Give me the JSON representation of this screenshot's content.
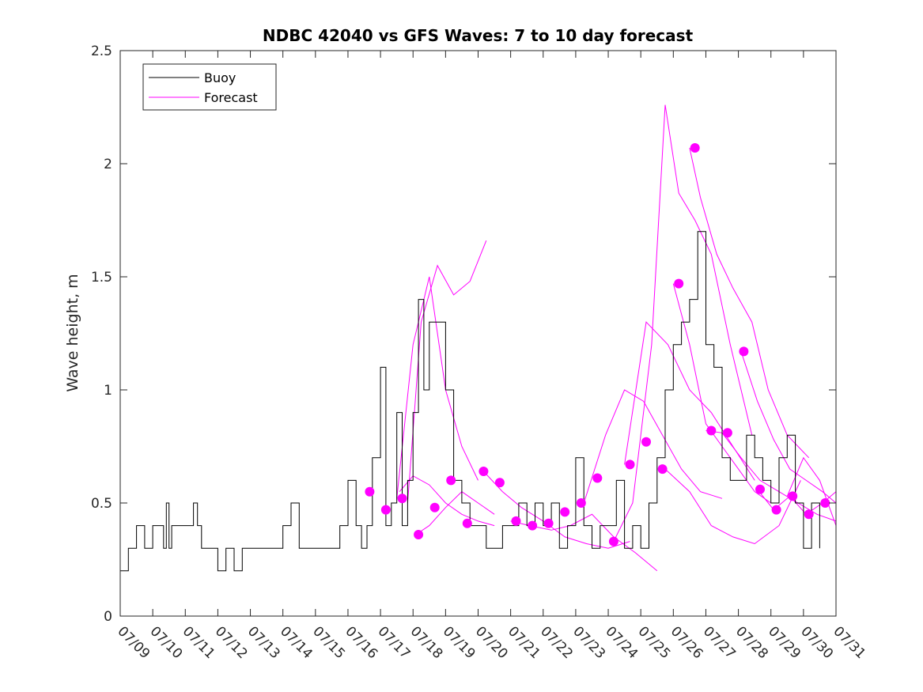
{
  "chart_data": {
    "type": "line",
    "title": "NDBC 42040 vs GFS Waves: 7 to 10 day forecast",
    "xlabel": "",
    "ylabel": "Wave height, m",
    "xlim": [
      "07/09",
      "07/31"
    ],
    "ylim": [
      0,
      2.5
    ],
    "x_tick_labels": [
      "07/09",
      "07/10",
      "07/11",
      "07/12",
      "07/13",
      "07/14",
      "07/15",
      "07/16",
      "07/17",
      "07/18",
      "07/19",
      "07/20",
      "07/21",
      "07/22",
      "07/23",
      "07/24",
      "07/25",
      "07/26",
      "07/27",
      "07/28",
      "07/29",
      "07/30",
      "07/31"
    ],
    "y_ticks": [
      0,
      0.5,
      1,
      1.5,
      2,
      2.5
    ],
    "y_tick_labels": [
      "0",
      "0.5",
      "1",
      "1.5",
      "2",
      "2.5"
    ],
    "grid": false,
    "legend": {
      "position": "top-left",
      "entries": [
        "Buoy",
        "Forecast"
      ]
    },
    "colors": {
      "buoy": "#000000",
      "forecast": "#ff00ff"
    },
    "buoy": {
      "name": "Buoy",
      "x": [
        "07/09 00:00",
        "07/09 06:00",
        "07/09 12:00",
        "07/09 18:00",
        "07/10 00:00",
        "07/10 06:00",
        "07/10 08:00",
        "07/10 10:00",
        "07/10 12:00",
        "07/10 14:00",
        "07/10 16:00",
        "07/10 18:00",
        "07/11 00:00",
        "07/11 06:00",
        "07/11 09:00",
        "07/11 12:00",
        "07/11 18:00",
        "07/12 00:00",
        "07/12 06:00",
        "07/12 12:00",
        "07/12 18:00",
        "07/13 00:00",
        "07/13 06:00",
        "07/13 12:00",
        "07/13 18:00",
        "07/14 00:00",
        "07/14 06:00",
        "07/14 12:00",
        "07/14 18:00",
        "07/15 00:00",
        "07/15 06:00",
        "07/15 12:00",
        "07/15 18:00",
        "07/16 00:00",
        "07/16 06:00",
        "07/16 10:00",
        "07/16 14:00",
        "07/16 18:00",
        "07/17 00:00",
        "07/17 04:00",
        "07/17 08:00",
        "07/17 12:00",
        "07/17 16:00",
        "07/17 20:00",
        "07/18 00:00",
        "07/18 04:00",
        "07/18 08:00",
        "07/18 12:00",
        "07/18 18:00",
        "07/19 00:00",
        "07/19 06:00",
        "07/19 12:00",
        "07/19 18:00",
        "07/20 00:00",
        "07/20 06:00",
        "07/20 12:00",
        "07/20 18:00",
        "07/21 00:00",
        "07/21 06:00",
        "07/21 12:00",
        "07/21 18:00",
        "07/22 00:00",
        "07/22 06:00",
        "07/22 12:00",
        "07/22 18:00",
        "07/23 00:00",
        "07/23 06:00",
        "07/23 12:00",
        "07/23 18:00",
        "07/24 00:00",
        "07/24 06:00",
        "07/24 12:00",
        "07/24 18:00",
        "07/25 00:00",
        "07/25 06:00",
        "07/25 12:00",
        "07/25 18:00",
        "07/26 00:00",
        "07/26 06:00",
        "07/26 12:00",
        "07/26 18:00",
        "07/27 00:00",
        "07/27 06:00",
        "07/27 12:00",
        "07/27 18:00",
        "07/28 00:00",
        "07/28 06:00",
        "07/28 12:00",
        "07/28 18:00",
        "07/29 00:00",
        "07/29 06:00",
        "07/29 12:00",
        "07/29 18:00",
        "07/30 00:00",
        "07/30 06:00",
        "07/30 12:00"
      ],
      "y": [
        0.2,
        0.3,
        0.4,
        0.3,
        0.4,
        0.4,
        0.3,
        0.5,
        0.3,
        0.4,
        0.4,
        0.4,
        0.4,
        0.5,
        0.4,
        0.3,
        0.3,
        0.2,
        0.3,
        0.2,
        0.3,
        0.3,
        0.3,
        0.3,
        0.3,
        0.4,
        0.5,
        0.3,
        0.3,
        0.3,
        0.3,
        0.3,
        0.4,
        0.6,
        0.4,
        0.3,
        0.4,
        0.7,
        1.1,
        0.4,
        0.5,
        0.9,
        0.4,
        0.6,
        0.9,
        1.4,
        1.0,
        1.3,
        1.3,
        1.0,
        0.6,
        0.5,
        0.4,
        0.4,
        0.3,
        0.3,
        0.4,
        0.4,
        0.5,
        0.4,
        0.5,
        0.4,
        0.5,
        0.3,
        0.4,
        0.7,
        0.4,
        0.3,
        0.4,
        0.4,
        0.6,
        0.3,
        0.4,
        0.3,
        0.5,
        0.7,
        1.0,
        1.2,
        1.3,
        1.4,
        1.7,
        1.2,
        1.1,
        0.7,
        0.6,
        0.6,
        0.8,
        0.7,
        0.6,
        0.5,
        0.7,
        0.8,
        0.5,
        0.3,
        0.5,
        0.3
      ]
    },
    "forecast_series": [
      {
        "name": "Forecast",
        "x": [
          "07/17 14:00",
          "07/18 00:00",
          "07/18 12:00",
          "07/19 00:00",
          "07/19 12:00",
          "07/20 00:00",
          "07/20 12:00"
        ],
        "y": [
          0.55,
          0.62,
          0.58,
          0.5,
          0.45,
          0.42,
          0.4
        ]
      },
      {
        "name": "Forecast",
        "x": [
          "07/17 20:00",
          "07/18 06:00",
          "07/18 18:00",
          "07/19 06:00",
          "07/19 18:00",
          "07/20 06:00"
        ],
        "y": [
          0.5,
          1.3,
          1.55,
          1.42,
          1.48,
          1.66
        ]
      },
      {
        "name": "Forecast",
        "x": [
          "07/17 12:00",
          "07/18 00:00",
          "07/18 12:00",
          "07/19 00:00",
          "07/19 12:00",
          "07/20 00:00"
        ],
        "y": [
          0.52,
          1.2,
          1.5,
          1.0,
          0.75,
          0.6
        ]
      },
      {
        "name": "Forecast",
        "x": [
          "07/18 02:00",
          "07/18 12:00",
          "07/19 00:00",
          "07/19 12:00",
          "07/20 00:00",
          "07/20 12:00"
        ],
        "y": [
          0.36,
          0.4,
          0.48,
          0.55,
          0.5,
          0.45
        ]
      },
      {
        "name": "Forecast",
        "x": [
          "07/20 04:00",
          "07/20 18:00",
          "07/21 08:00",
          "07/22 00:00",
          "07/22 16:00",
          "07/23 08:00",
          "07/24 00:00",
          "07/24 16:00"
        ],
        "y": [
          0.64,
          0.55,
          0.48,
          0.42,
          0.35,
          0.32,
          0.3,
          0.33
        ]
      },
      {
        "name": "Forecast",
        "x": [
          "07/21 00:00",
          "07/21 14:00",
          "07/22 06:00",
          "07/22 20:00",
          "07/23 12:00",
          "07/24 04:00",
          "07/24 20:00",
          "07/25 12:00"
        ],
        "y": [
          0.42,
          0.4,
          0.38,
          0.4,
          0.45,
          0.35,
          0.28,
          0.2
        ]
      },
      {
        "name": "Forecast",
        "x": [
          "07/23 06:00",
          "07/23 22:00",
          "07/24 12:00",
          "07/25 02:00",
          "07/25 16:00",
          "07/26 06:00",
          "07/26 20:00",
          "07/27 12:00"
        ],
        "y": [
          0.5,
          0.8,
          1.0,
          0.95,
          0.8,
          0.65,
          0.55,
          0.52
        ]
      },
      {
        "name": "Forecast",
        "x": [
          "07/24 04:00",
          "07/24 18:00",
          "07/25 08:00",
          "07/25 18:00",
          "07/26 04:00",
          "07/26 16:00",
          "07/27 04:00",
          "07/27 18:00",
          "07/28 10:00"
        ],
        "y": [
          0.33,
          0.5,
          1.2,
          2.26,
          1.87,
          1.75,
          1.6,
          1.2,
          0.8
        ]
      },
      {
        "name": "Forecast",
        "x": [
          "07/24 12:00",
          "07/25 04:00",
          "07/25 20:00",
          "07/26 12:00",
          "07/27 04:00",
          "07/27 20:00",
          "07/28 12:00"
        ],
        "y": [
          0.67,
          1.3,
          1.2,
          1.0,
          0.9,
          0.75,
          0.6
        ]
      },
      {
        "name": "Forecast",
        "x": [
          "07/25 18:00",
          "07/26 12:00",
          "07/27 04:00",
          "07/27 20:00",
          "07/28 12:00",
          "07/29 06:00",
          "07/29 22:00"
        ],
        "y": [
          0.65,
          0.55,
          0.4,
          0.35,
          0.32,
          0.4,
          0.6
        ]
      },
      {
        "name": "Forecast",
        "x": [
          "07/26 12:00",
          "07/26 20:00",
          "07/27 08:00",
          "07/27 20:00",
          "07/28 10:00",
          "07/28 22:00",
          "07/29 12:00",
          "07/30 04:00"
        ],
        "y": [
          2.07,
          1.85,
          1.6,
          1.45,
          1.3,
          1.0,
          0.8,
          0.7
        ]
      },
      {
        "name": "Forecast",
        "x": [
          "07/28 02:00",
          "07/28 14:00",
          "07/29 02:00",
          "07/29 14:00",
          "07/30 02:00",
          "07/30 14:00",
          "07/31 00:00"
        ],
        "y": [
          1.17,
          0.95,
          0.78,
          0.65,
          0.6,
          0.55,
          0.5
        ]
      },
      {
        "name": "Forecast",
        "x": [
          "07/27 00:00",
          "07/27 12:00",
          "07/28 02:00",
          "07/28 16:00",
          "07/29 06:00",
          "07/29 20:00",
          "07/30 10:00",
          "07/31 00:00"
        ],
        "y": [
          0.82,
          0.81,
          0.7,
          0.6,
          0.55,
          0.5,
          0.45,
          0.42
        ]
      },
      {
        "name": "Forecast",
        "x": [
          "07/28 14:00",
          "07/29 02:00",
          "07/29 14:00",
          "07/30 02:00",
          "07/30 14:00",
          "07/31 00:00"
        ],
        "y": [
          0.56,
          0.47,
          0.53,
          0.45,
          0.5,
          0.55
        ]
      },
      {
        "name": "Forecast",
        "x": [
          "07/29 12:00",
          "07/30 00:00",
          "07/30 12:00",
          "07/31 00:00"
        ],
        "y": [
          0.53,
          0.7,
          0.6,
          0.4
        ]
      },
      {
        "name": "Forecast",
        "x": [
          "07/26 00:00",
          "07/26 12:00",
          "07/27 00:00",
          "07/27 12:00",
          "07/28 00:00",
          "07/28 12:00",
          "07/29 00:00"
        ],
        "y": [
          1.47,
          1.2,
          0.85,
          0.75,
          0.65,
          0.55,
          0.5
        ]
      }
    ],
    "forecast_markers": {
      "x": [
        "07/16 16:00",
        "07/17 04:00",
        "07/17 16:00",
        "07/18 04:00",
        "07/18 16:00",
        "07/19 04:00",
        "07/19 16:00",
        "07/20 04:00",
        "07/20 16:00",
        "07/21 04:00",
        "07/21 16:00",
        "07/22 04:00",
        "07/22 16:00",
        "07/23 04:00",
        "07/23 16:00",
        "07/24 04:00",
        "07/24 16:00",
        "07/25 04:00",
        "07/25 16:00",
        "07/26 04:00",
        "07/26 16:00",
        "07/27 04:00",
        "07/27 16:00",
        "07/28 04:00",
        "07/28 16:00",
        "07/29 04:00",
        "07/29 16:00",
        "07/30 04:00",
        "07/30 16:00"
      ],
      "y": [
        0.55,
        0.47,
        0.52,
        0.36,
        0.48,
        0.6,
        0.41,
        0.64,
        0.59,
        0.42,
        0.4,
        0.41,
        0.46,
        0.5,
        0.61,
        0.33,
        0.67,
        0.77,
        0.65,
        1.47,
        2.07,
        0.82,
        0.81,
        1.17,
        0.56,
        0.47,
        0.53,
        0.45,
        0.5
      ]
    }
  }
}
